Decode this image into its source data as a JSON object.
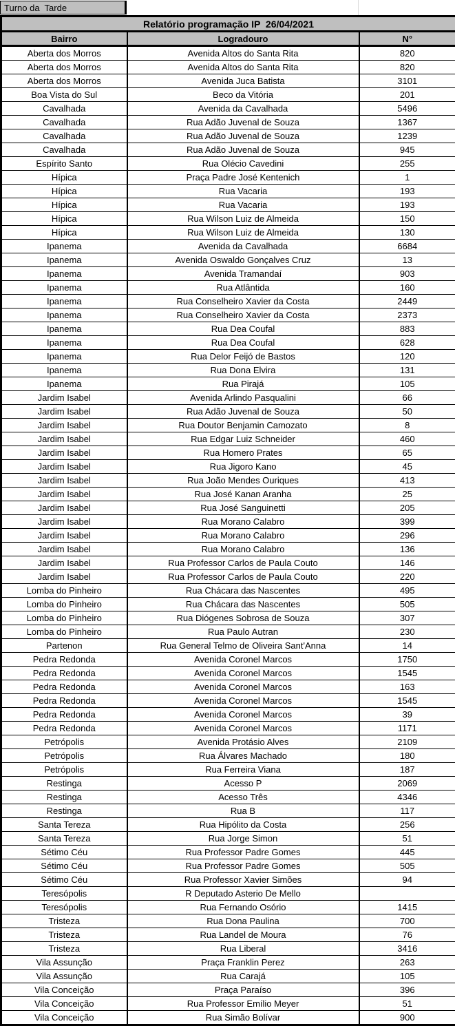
{
  "page": {
    "turno_label": "Turno da  Tarde",
    "title": "Relatório programação IP  26/04/2021"
  },
  "colors": {
    "header_fill": "#bfbfbf",
    "border": "#000000",
    "gridline": "#d9d9d9",
    "background": "#ffffff"
  },
  "table": {
    "columns": [
      "Bairro",
      "Logradouro",
      "N°"
    ],
    "rows": [
      [
        "Aberta dos Morros",
        "Avenida Altos do Santa Rita",
        "820"
      ],
      [
        "Aberta dos Morros",
        "Avenida Altos do Santa Rita",
        "820"
      ],
      [
        "Aberta dos Morros",
        "Avenida Juca Batista",
        "3101"
      ],
      [
        "Boa Vista do Sul",
        "Beco da Vitória",
        "201"
      ],
      [
        "Cavalhada",
        "Avenida da Cavalhada",
        "5496"
      ],
      [
        "Cavalhada",
        "Rua Adão Juvenal de Souza",
        "1367"
      ],
      [
        "Cavalhada",
        "Rua Adão Juvenal de Souza",
        "1239"
      ],
      [
        "Cavalhada",
        "Rua Adão Juvenal de Souza",
        "945"
      ],
      [
        "Espírito Santo",
        "Rua Olécio Cavedini",
        "255"
      ],
      [
        "Hípica",
        "Praça Padre José Kentenich",
        "1"
      ],
      [
        "Hípica",
        "Rua Vacaria",
        "193"
      ],
      [
        "Hípica",
        "Rua Vacaria",
        "193"
      ],
      [
        "Hípica",
        "Rua Wilson Luiz de Almeida",
        "150"
      ],
      [
        "Hípica",
        "Rua Wilson Luiz de Almeida",
        "130"
      ],
      [
        "Ipanema",
        "Avenida da Cavalhada",
        "6684"
      ],
      [
        "Ipanema",
        "Avenida Oswaldo Gonçalves Cruz",
        "13"
      ],
      [
        "Ipanema",
        "Avenida Tramandaí",
        "903"
      ],
      [
        "Ipanema",
        "Rua Atlântida",
        "160"
      ],
      [
        "Ipanema",
        "Rua Conselheiro Xavier da Costa",
        "2449"
      ],
      [
        "Ipanema",
        "Rua Conselheiro Xavier da Costa",
        "2373"
      ],
      [
        "Ipanema",
        "Rua Dea Coufal",
        "883"
      ],
      [
        "Ipanema",
        "Rua Dea Coufal",
        "628"
      ],
      [
        "Ipanema",
        "Rua Delor Feijó de Bastos",
        "120"
      ],
      [
        "Ipanema",
        "Rua Dona Elvira",
        "131"
      ],
      [
        "Ipanema",
        "Rua Pirajá",
        "105"
      ],
      [
        "Jardim Isabel",
        "Avenida Arlindo Pasqualini",
        "66"
      ],
      [
        "Jardim Isabel",
        "Rua Adão Juvenal de Souza",
        "50"
      ],
      [
        "Jardim Isabel",
        "Rua Doutor Benjamin Camozato",
        "8"
      ],
      [
        "Jardim Isabel",
        "Rua Edgar Luiz Schneider",
        "460"
      ],
      [
        "Jardim Isabel",
        "Rua Homero Prates",
        "65"
      ],
      [
        "Jardim Isabel",
        "Rua Jigoro Kano",
        "45"
      ],
      [
        "Jardim Isabel",
        "Rua João Mendes Ouriques",
        "413"
      ],
      [
        "Jardim Isabel",
        "Rua José Kanan Aranha",
        "25"
      ],
      [
        "Jardim Isabel",
        "Rua José Sanguinetti",
        "205"
      ],
      [
        "Jardim Isabel",
        "Rua Morano Calabro",
        "399"
      ],
      [
        "Jardim Isabel",
        "Rua Morano Calabro",
        "296"
      ],
      [
        "Jardim Isabel",
        "Rua Morano Calabro",
        "136"
      ],
      [
        "Jardim Isabel",
        "Rua Professor Carlos de Paula Couto",
        "146"
      ],
      [
        "Jardim Isabel",
        "Rua Professor Carlos de Paula Couto",
        "220"
      ],
      [
        "Lomba do Pinheiro",
        "Rua Chácara das Nascentes",
        "495"
      ],
      [
        "Lomba do Pinheiro",
        "Rua Chácara das Nascentes",
        "505"
      ],
      [
        "Lomba do Pinheiro",
        "Rua Diógenes Sobrosa de Souza",
        "307"
      ],
      [
        "Lomba do Pinheiro",
        "Rua Paulo Autran",
        "230"
      ],
      [
        "Partenon",
        "Rua General Telmo de Oliveira Sant'Anna",
        "14"
      ],
      [
        "Pedra Redonda",
        "Avenida Coronel Marcos",
        "1750"
      ],
      [
        "Pedra Redonda",
        "Avenida Coronel Marcos",
        "1545"
      ],
      [
        "Pedra Redonda",
        "Avenida Coronel Marcos",
        "163"
      ],
      [
        "Pedra Redonda",
        "Avenida Coronel Marcos",
        "1545"
      ],
      [
        "Pedra Redonda",
        "Avenida Coronel Marcos",
        "39"
      ],
      [
        "Pedra Redonda",
        "Avenida Coronel Marcos",
        "1171"
      ],
      [
        "Petrópolis",
        "Avenida Protásio Alves",
        "2109"
      ],
      [
        "Petrópolis",
        "Rua Álvares Machado",
        "180"
      ],
      [
        "Petrópolis",
        "Rua Ferreira Viana",
        "187"
      ],
      [
        "Restinga",
        "Acesso P",
        "2069"
      ],
      [
        "Restinga",
        "Acesso Três",
        "4346"
      ],
      [
        "Restinga",
        "Rua B",
        "117"
      ],
      [
        "Santa Tereza",
        "Rua Hipólito da Costa",
        "256"
      ],
      [
        "Santa Tereza",
        "Rua Jorge Simon",
        "51"
      ],
      [
        "Sétimo Céu",
        "Rua Professor Padre Gomes",
        "445"
      ],
      [
        "Sétimo Céu",
        "Rua Professor Padre Gomes",
        "505"
      ],
      [
        "Sétimo Céu",
        "Rua Professor Xavier Simões",
        "94"
      ],
      [
        "Teresópolis",
        "R Deputado Asterio De Mello",
        ""
      ],
      [
        "Teresópolis",
        "Rua Fernando Osório",
        "1415"
      ],
      [
        "Tristeza",
        "Rua Dona Paulina",
        "700"
      ],
      [
        "Tristeza",
        "Rua Landel de Moura",
        "76"
      ],
      [
        "Tristeza",
        "Rua Liberal",
        "3416"
      ],
      [
        "Vila Assunção",
        "Praça Franklin Perez",
        "263"
      ],
      [
        "Vila Assunção",
        "Rua Carajá",
        "105"
      ],
      [
        "Vila Conceição",
        "Praça Paraíso",
        "396"
      ],
      [
        "Vila Conceição",
        "Rua Professor Emílio Meyer",
        "51"
      ],
      [
        "Vila Conceição",
        "Rua Simão Bolívar",
        "900"
      ]
    ]
  }
}
